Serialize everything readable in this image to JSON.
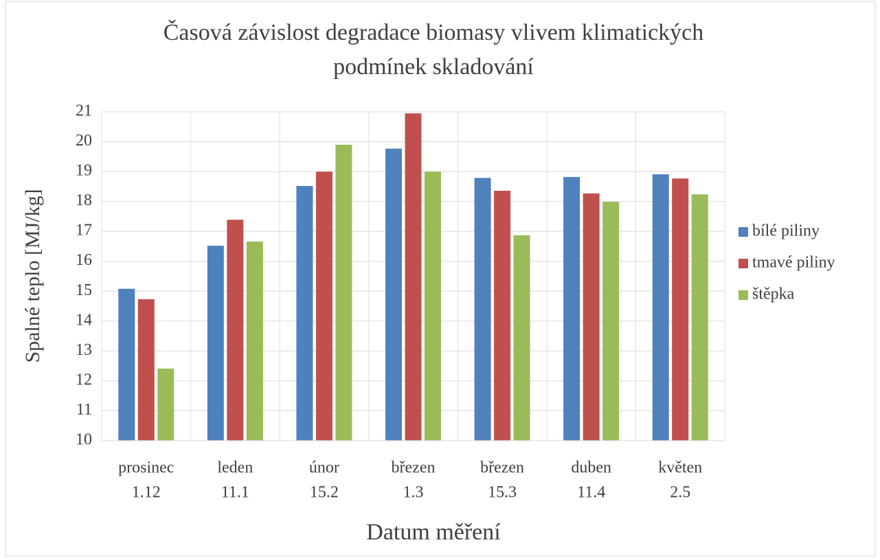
{
  "chart_data": {
    "type": "bar",
    "title": [
      "Časová závislost degradace biomasy vlivem klimatických",
      "podmínek skladování"
    ],
    "x_label": "Datum měření",
    "y_label": "Spalné teplo [MJ/kg]",
    "categories": [
      [
        "prosinec",
        "1.12"
      ],
      [
        "leden",
        "11.1"
      ],
      [
        "únor",
        "15.2"
      ],
      [
        "březen",
        "1.3"
      ],
      [
        "březen",
        "15.3"
      ],
      [
        "duben",
        "11.4"
      ],
      [
        "květen",
        "2.5"
      ]
    ],
    "series": [
      {
        "name": "bílé piliny",
        "color": "#4f81bd",
        "values": [
          15.08,
          16.52,
          18.52,
          19.77,
          18.79,
          18.82,
          18.91
        ]
      },
      {
        "name": "tmavé piliny",
        "color": "#c0504d",
        "values": [
          14.73,
          17.39,
          19.0,
          20.95,
          18.36,
          18.27,
          18.77
        ]
      },
      {
        "name": "štěpka",
        "color": "#9bbb59",
        "values": [
          12.41,
          16.66,
          19.9,
          19.0,
          16.87,
          17.99,
          18.24
        ]
      }
    ],
    "ylim": [
      10,
      21
    ],
    "yticks": [
      10,
      11,
      12,
      13,
      14,
      15,
      16,
      17,
      18,
      19,
      20,
      21
    ],
    "grid": true,
    "legend": "right"
  }
}
